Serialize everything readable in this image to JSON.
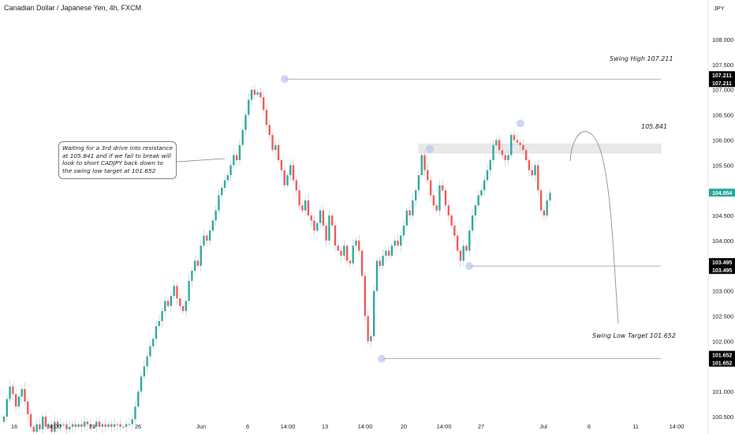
{
  "symbol": "Canadian Dollar / Japanese Yen, 4h, FXCM",
  "currency": "JPY",
  "callout_text": "Waiting for a 3rd drive into resistance at 105.841 and if we fail to break will look to short CADJPY back down to the swing low target at 101.652",
  "annotations": {
    "swing_high": "Swing High 107.211",
    "resistance": "105.841",
    "swing_low": "Swing Low Target 101.652"
  },
  "price_badges": {
    "swing_high": [
      "107.211",
      "107.211"
    ],
    "current": "104.954",
    "mid_low": [
      "103.495",
      "103.495"
    ],
    "swing_low": [
      "101.652",
      "101.652"
    ]
  },
  "colors": {
    "up": "#26a69a",
    "down": "#ef5350",
    "current_badge": "#26a69a",
    "level_badge": "#000000",
    "zone": "#e9e9ea",
    "marker": "#b9c3f2"
  },
  "chart_data": {
    "type": "candlestick",
    "title": "Canadian Dollar / Japanese Yen, 4h, FXCM",
    "ylabel": "JPY",
    "ylim": [
      100.25,
      108.4
    ],
    "y_ticks": [
      "108.000",
      "107.500",
      "107.000",
      "106.500",
      "106.000",
      "105.500",
      "104.500",
      "104.000",
      "103.000",
      "102.500",
      "102.000",
      "101.000",
      "100.500"
    ],
    "x_ticks": [
      "16",
      "14:00",
      "23",
      "26",
      "Jun",
      "6",
      "14:00",
      "13",
      "14:00",
      "20",
      "14:00",
      "27",
      "Jul",
      "6",
      "11",
      "14:00"
    ],
    "levels": [
      {
        "name": "Swing High",
        "value": 107.211
      },
      {
        "name": "Resistance",
        "value": 105.841
      },
      {
        "name": "Mid swing low",
        "value": 103.495
      },
      {
        "name": "Swing Low Target",
        "value": 101.652
      }
    ],
    "current_price": 104.954,
    "closes": [
      100.5,
      100.85,
      101.1,
      100.95,
      100.7,
      100.9,
      101.05,
      100.8,
      100.55,
      100.3,
      100.2,
      100.35,
      100.25,
      100.5,
      100.3,
      100.35,
      100.2,
      100.4,
      100.3,
      100.35,
      100.35,
      100.25,
      100.3,
      100.35,
      100.3,
      100.35,
      100.3,
      100.4,
      100.35,
      100.3,
      100.3,
      100.4,
      100.3,
      100.35,
      100.3,
      100.35,
      100.3,
      100.35,
      100.35,
      100.3,
      100.3,
      100.35,
      100.35,
      100.45,
      100.7,
      101.0,
      101.3,
      101.5,
      101.7,
      101.9,
      102.05,
      102.3,
      102.4,
      102.6,
      102.8,
      102.7,
      102.9,
      103.1,
      102.85,
      102.7,
      102.6,
      102.8,
      103.2,
      103.4,
      103.6,
      103.5,
      103.9,
      104.1,
      104.0,
      104.2,
      104.4,
      104.6,
      104.9,
      105.05,
      105.2,
      105.3,
      105.5,
      105.7,
      105.6,
      105.9,
      106.2,
      106.5,
      106.8,
      107.0,
      106.9,
      106.95,
      106.85,
      106.6,
      106.3,
      106.1,
      105.8,
      105.9,
      105.6,
      105.4,
      105.1,
      105.3,
      105.5,
      105.2,
      105.0,
      104.7,
      104.6,
      104.8,
      104.5,
      104.4,
      104.2,
      104.35,
      104.6,
      104.3,
      104.0,
      104.5,
      104.3,
      103.9,
      103.8,
      103.7,
      103.9,
      103.6,
      103.55,
      103.9,
      104.0,
      103.8,
      103.3,
      102.5,
      102.0,
      102.1,
      103.0,
      103.6,
      103.5,
      103.7,
      103.8,
      103.7,
      103.9,
      104.0,
      103.9,
      104.1,
      104.3,
      104.6,
      104.5,
      104.8,
      105.0,
      105.3,
      105.7,
      105.4,
      105.2,
      104.9,
      104.7,
      104.6,
      105.1,
      105.0,
      104.7,
      104.5,
      104.3,
      104.1,
      103.8,
      103.6,
      103.9,
      103.8,
      104.2,
      104.5,
      104.7,
      104.9,
      105.0,
      105.2,
      105.4,
      105.6,
      105.9,
      106.0,
      105.8,
      105.7,
      105.6,
      105.7,
      106.1,
      106.0,
      105.95,
      105.9,
      105.8,
      105.6,
      105.4,
      105.3,
      105.5,
      105.0,
      104.6,
      104.5,
      104.8,
      104.95
    ]
  }
}
